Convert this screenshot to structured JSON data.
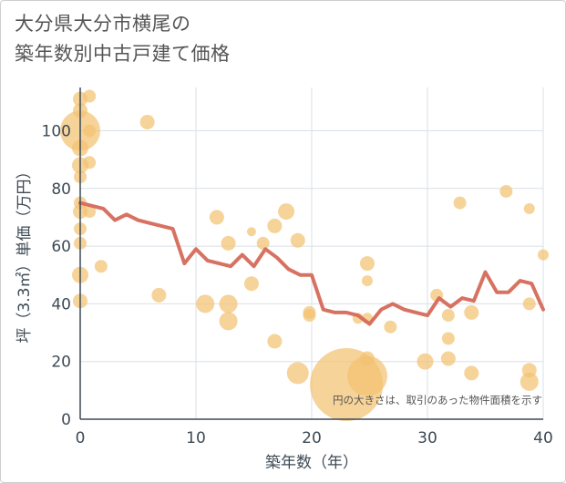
{
  "title_lines": [
    "大分県大分市横尾の",
    "築年数別中古戸建て価格"
  ],
  "note": "円の大きさは、取引のあった物件面積を示す",
  "colors": {
    "bubble": "#f3c272",
    "line": "#d56a5a",
    "grid": "#d9e0e6",
    "axis": "#3d4a55",
    "text": "#555555"
  },
  "chart_data": {
    "type": "scatter",
    "title": "大分県大分市横尾の築年数別中古戸建て価格",
    "xlabel": "築年数（年）",
    "ylabel": "坪（3.3㎡）単価（万円）",
    "xlim": [
      0,
      40
    ],
    "ylim": [
      0,
      115
    ],
    "xticks": [
      0,
      10,
      20,
      30,
      40
    ],
    "yticks": [
      0,
      20,
      40,
      60,
      80,
      100
    ],
    "grid": true,
    "series": [
      {
        "kind": "bubble",
        "points": [
          {
            "x": 0,
            "y": 111,
            "r": 8
          },
          {
            "x": 0,
            "y": 107,
            "r": 8
          },
          {
            "x": 0,
            "y": 100,
            "r": 22
          },
          {
            "x": 0,
            "y": 94,
            "r": 9
          },
          {
            "x": 0,
            "y": 88,
            "r": 9
          },
          {
            "x": 0,
            "y": 84,
            "r": 7
          },
          {
            "x": 0,
            "y": 75,
            "r": 7
          },
          {
            "x": 0,
            "y": 72,
            "r": 8
          },
          {
            "x": 0,
            "y": 66,
            "r": 7
          },
          {
            "x": 0,
            "y": 61,
            "r": 7
          },
          {
            "x": 0,
            "y": 50,
            "r": 9
          },
          {
            "x": 0,
            "y": 41,
            "r": 8
          },
          {
            "x": 0.8,
            "y": 112,
            "r": 7
          },
          {
            "x": 0.8,
            "y": 100,
            "r": 7
          },
          {
            "x": 0.8,
            "y": 89,
            "r": 7
          },
          {
            "x": 0.8,
            "y": 72,
            "r": 7
          },
          {
            "x": 1.8,
            "y": 53,
            "r": 7
          },
          {
            "x": 5.8,
            "y": 103,
            "r": 8
          },
          {
            "x": 6.8,
            "y": 43,
            "r": 8
          },
          {
            "x": 10.8,
            "y": 40,
            "r": 10
          },
          {
            "x": 11.8,
            "y": 70,
            "r": 8
          },
          {
            "x": 12.8,
            "y": 61,
            "r": 8
          },
          {
            "x": 12.8,
            "y": 40,
            "r": 10
          },
          {
            "x": 12.8,
            "y": 34,
            "r": 10
          },
          {
            "x": 14.8,
            "y": 65,
            "r": 5
          },
          {
            "x": 14.8,
            "y": 47,
            "r": 8
          },
          {
            "x": 15.8,
            "y": 61,
            "r": 7
          },
          {
            "x": 16.8,
            "y": 67,
            "r": 8
          },
          {
            "x": 16.8,
            "y": 27,
            "r": 8
          },
          {
            "x": 17.8,
            "y": 72,
            "r": 9
          },
          {
            "x": 18.8,
            "y": 62,
            "r": 8
          },
          {
            "x": 18.8,
            "y": 16,
            "r": 12
          },
          {
            "x": 19.8,
            "y": 37,
            "r": 7
          },
          {
            "x": 19.8,
            "y": 36,
            "r": 7
          },
          {
            "x": 23,
            "y": 12,
            "r": 40
          },
          {
            "x": 24,
            "y": 35,
            "r": 6
          },
          {
            "x": 24.8,
            "y": 54,
            "r": 8
          },
          {
            "x": 24.8,
            "y": 48,
            "r": 6
          },
          {
            "x": 24.8,
            "y": 35,
            "r": 6
          },
          {
            "x": 24.8,
            "y": 21,
            "r": 8
          },
          {
            "x": 24.8,
            "y": 15,
            "r": 22
          },
          {
            "x": 26.8,
            "y": 32,
            "r": 7
          },
          {
            "x": 29.8,
            "y": 20,
            "r": 9
          },
          {
            "x": 30.8,
            "y": 43,
            "r": 7
          },
          {
            "x": 31.8,
            "y": 36,
            "r": 7
          },
          {
            "x": 31.8,
            "y": 28,
            "r": 7
          },
          {
            "x": 31.8,
            "y": 21,
            "r": 8
          },
          {
            "x": 32.8,
            "y": 75,
            "r": 7
          },
          {
            "x": 33.8,
            "y": 37,
            "r": 8
          },
          {
            "x": 33.8,
            "y": 16,
            "r": 8
          },
          {
            "x": 36.8,
            "y": 79,
            "r": 7
          },
          {
            "x": 38.8,
            "y": 73,
            "r": 6
          },
          {
            "x": 38.8,
            "y": 40,
            "r": 7
          },
          {
            "x": 38.8,
            "y": 17,
            "r": 8
          },
          {
            "x": 38.8,
            "y": 13,
            "r": 10
          },
          {
            "x": 40,
            "y": 57,
            "r": 6
          }
        ]
      },
      {
        "kind": "line",
        "x": [
          0,
          1,
          2,
          3,
          4,
          5,
          6,
          7,
          8,
          9,
          10,
          11,
          12,
          13,
          14,
          15,
          16,
          17,
          18,
          19,
          20,
          21,
          22,
          23,
          24,
          25,
          26,
          27,
          28,
          29,
          30,
          31,
          32,
          33,
          34,
          35,
          36,
          37,
          38,
          39,
          40
        ],
        "y": [
          75,
          74,
          73,
          69,
          71,
          69,
          68,
          67,
          66,
          54,
          59,
          55,
          54,
          53,
          57,
          53,
          59,
          56,
          52,
          50,
          50,
          38,
          37,
          37,
          36,
          33,
          38,
          40,
          38,
          37,
          36,
          42,
          39,
          42,
          41,
          51,
          44,
          44,
          48,
          47,
          38
        ]
      }
    ]
  }
}
